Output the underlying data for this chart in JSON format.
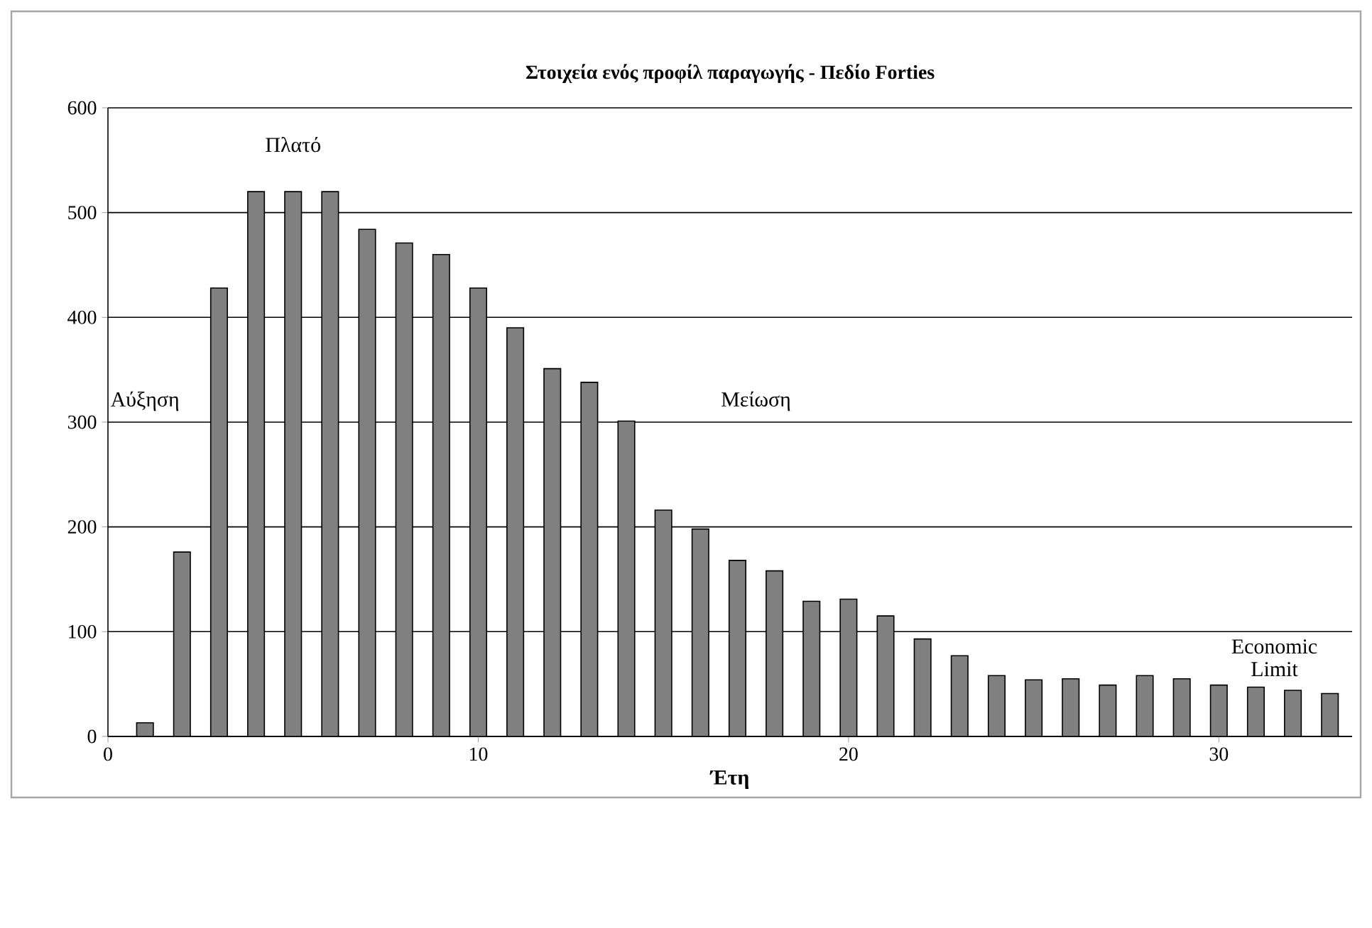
{
  "chart_data": {
    "type": "bar",
    "title": "Στοιχεία ενός προφίλ παραγωγής - Πεδίο Forties",
    "xlabel": "Έτη",
    "x": [
      1,
      2,
      3,
      4,
      5,
      6,
      7,
      8,
      9,
      10,
      11,
      12,
      13,
      14,
      15,
      16,
      17,
      18,
      19,
      20,
      21,
      22,
      23,
      24,
      25,
      26,
      27,
      28,
      29,
      30,
      31,
      32,
      33
    ],
    "values": [
      13,
      176,
      428,
      520,
      520,
      520,
      484,
      471,
      460,
      428,
      390,
      351,
      338,
      301,
      216,
      198,
      168,
      158,
      129,
      131,
      115,
      93,
      77,
      58,
      54,
      55,
      49,
      58,
      55,
      49,
      47,
      44,
      41
    ],
    "color": "#808080",
    "xlim": [
      0,
      33.6
    ],
    "xticks": [
      0,
      10,
      20,
      30
    ],
    "ylim": [
      0,
      600
    ],
    "yticks": [
      0,
      100,
      200,
      300,
      400,
      500,
      600
    ],
    "grid": "y",
    "annotations": [
      "Αύξηση",
      "Πλατό",
      "Μείωση",
      "Economic Limit"
    ]
  }
}
